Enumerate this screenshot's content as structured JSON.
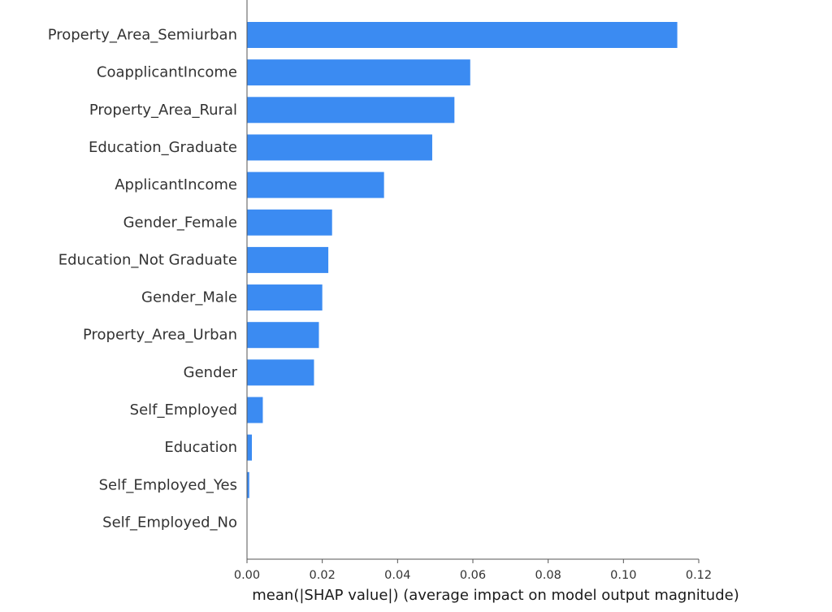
{
  "chart_data": {
    "type": "bar",
    "orientation": "horizontal",
    "xlabel": "mean(|SHAP value|) (average impact on model output magnitude)",
    "categories": [
      "Property_Area_Semiurban",
      "CoapplicantIncome",
      "Property_Area_Rural",
      "Education_Graduate",
      "ApplicantIncome",
      "Gender_Female",
      "Education_Not Graduate",
      "Gender_Male",
      "Property_Area_Urban",
      "Gender",
      "Self_Employed",
      "Education",
      "Self_Employed_Yes",
      "Self_Employed_No"
    ],
    "values": [
      0.1143,
      0.0593,
      0.0551,
      0.0492,
      0.0364,
      0.0226,
      0.0216,
      0.02,
      0.0191,
      0.0178,
      0.0042,
      0.0013,
      0.0006,
      0.0
    ],
    "xlim": [
      0,
      0.12
    ],
    "xticks": [
      "0.00",
      "0.02",
      "0.04",
      "0.06",
      "0.08",
      "0.10",
      "0.12"
    ],
    "bar_color": "#3b8bf2",
    "axis_color": "#555555"
  }
}
